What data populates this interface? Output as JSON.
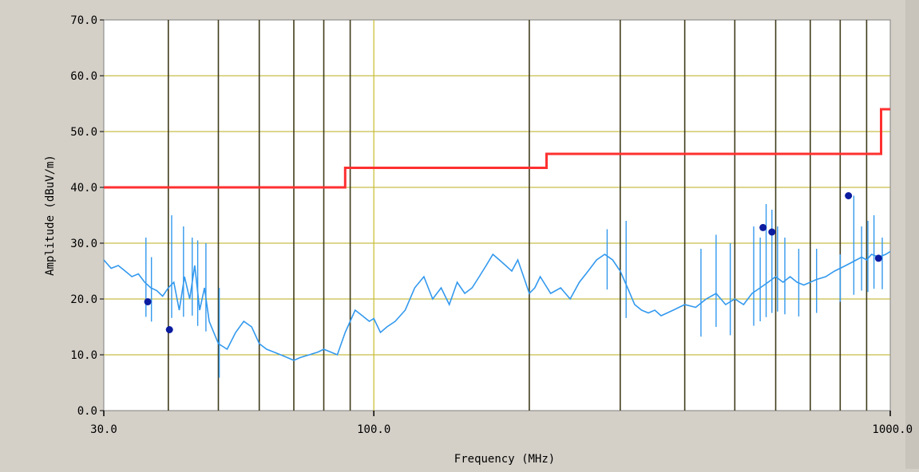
{
  "chart_data": {
    "type": "line",
    "xlabel": "Frequency (MHz)",
    "ylabel": "Amplitude (dBuV/m)",
    "x_scale": "log",
    "xlim": [
      30,
      1000
    ],
    "ylim": [
      0,
      70
    ],
    "x_tick_labels": [
      {
        "value": 30,
        "label": "30.0"
      },
      {
        "value": 100,
        "label": "100.0"
      },
      {
        "value": 1000,
        "label": "1000.0"
      }
    ],
    "y_tick_labels": [
      {
        "value": 0,
        "label": "0.0"
      },
      {
        "value": 10,
        "label": "10.0"
      },
      {
        "value": 20,
        "label": "20.0"
      },
      {
        "value": 30,
        "label": "30.0"
      },
      {
        "value": 40,
        "label": "40.0"
      },
      {
        "value": 50,
        "label": "50.0"
      },
      {
        "value": 60,
        "label": "60.0"
      },
      {
        "value": 70,
        "label": "70.0"
      }
    ],
    "grid": true,
    "grid_vertical_minor": [
      40,
      50,
      60,
      70,
      80,
      90,
      200,
      300,
      400,
      500,
      600,
      700,
      800,
      900
    ],
    "grid_vertical_major": [
      100,
      200
    ],
    "limit_line": {
      "color": "#ff3030",
      "x": [
        30,
        88,
        88,
        216,
        216,
        960,
        960,
        1000
      ],
      "y": [
        40,
        40,
        43.5,
        43.5,
        46,
        46,
        54,
        54
      ]
    },
    "measured_trace": {
      "color": "#3399ee",
      "x": [
        30,
        31,
        32,
        33,
        34,
        35,
        36,
        37,
        38,
        39,
        40,
        41,
        42,
        43,
        44,
        45,
        46,
        47,
        48,
        50,
        52,
        54,
        56,
        58,
        60,
        62,
        64,
        66,
        68,
        70,
        72,
        75,
        78,
        80,
        85,
        88,
        90,
        92,
        95,
        98,
        100,
        103,
        106,
        110,
        115,
        120,
        125,
        130,
        135,
        140,
        145,
        150,
        155,
        160,
        165,
        170,
        175,
        180,
        185,
        190,
        195,
        200,
        205,
        210,
        220,
        230,
        240,
        250,
        260,
        270,
        280,
        290,
        300,
        310,
        320,
        330,
        340,
        350,
        360,
        380,
        400,
        420,
        440,
        460,
        480,
        500,
        520,
        540,
        560,
        580,
        600,
        620,
        640,
        660,
        680,
        700,
        720,
        750,
        780,
        800,
        820,
        840,
        860,
        880,
        900,
        920,
        950,
        980,
        1000
      ],
      "y": [
        27,
        25.5,
        26,
        25,
        24,
        24.5,
        23,
        22,
        21.5,
        20.5,
        22,
        23,
        18,
        24,
        20,
        26,
        18,
        22,
        16,
        12,
        11,
        14,
        16,
        15,
        12,
        11,
        10.5,
        10,
        9.5,
        9,
        9.5,
        10,
        10.5,
        11,
        10,
        14,
        16,
        18,
        17,
        16,
        16.5,
        14,
        15,
        16,
        18,
        22,
        24,
        20,
        22,
        19,
        23,
        21,
        22,
        24,
        26,
        28,
        27,
        26,
        25,
        27,
        24,
        21,
        22,
        24,
        21,
        22,
        20,
        23,
        25,
        27,
        28,
        27,
        25,
        22,
        19,
        18,
        17.5,
        18,
        17,
        18,
        19,
        18.5,
        20,
        21,
        19,
        20,
        19,
        21,
        22,
        23,
        24,
        23,
        24,
        23,
        22.5,
        23,
        23.5,
        24,
        25,
        25.5,
        26,
        26.5,
        27,
        27.5,
        27,
        28,
        27.5,
        28,
        28.5
      ]
    },
    "spikes": [
      {
        "x": 36.2,
        "peak": 31
      },
      {
        "x": 37.1,
        "peak": 27.5
      },
      {
        "x": 40.6,
        "peak": 35
      },
      {
        "x": 42.8,
        "peak": 33
      },
      {
        "x": 44.5,
        "peak": 31
      },
      {
        "x": 45.6,
        "peak": 30.5
      },
      {
        "x": 47.3,
        "peak": 30
      },
      {
        "x": 50.2,
        "peak": 22
      },
      {
        "x": 283,
        "peak": 32.5
      },
      {
        "x": 308,
        "peak": 34
      },
      {
        "x": 430,
        "peak": 29
      },
      {
        "x": 460,
        "peak": 31.5
      },
      {
        "x": 490,
        "peak": 30
      },
      {
        "x": 544,
        "peak": 33
      },
      {
        "x": 560,
        "peak": 31
      },
      {
        "x": 575,
        "peak": 37
      },
      {
        "x": 590,
        "peak": 36
      },
      {
        "x": 605,
        "peak": 33
      },
      {
        "x": 625,
        "peak": 31
      },
      {
        "x": 665,
        "peak": 29
      },
      {
        "x": 720,
        "peak": 29
      },
      {
        "x": 800,
        "peak": 28
      },
      {
        "x": 850,
        "peak": 38.5
      },
      {
        "x": 880,
        "peak": 33
      },
      {
        "x": 905,
        "peak": 34
      },
      {
        "x": 930,
        "peak": 35
      },
      {
        "x": 965,
        "peak": 31
      }
    ],
    "markers": {
      "color": "#0c1ca0",
      "points": [
        {
          "x": 36.5,
          "y": 19.5
        },
        {
          "x": 40.2,
          "y": 14.5
        },
        {
          "x": 567,
          "y": 32.8
        },
        {
          "x": 590,
          "y": 32.0
        },
        {
          "x": 830,
          "y": 38.5
        },
        {
          "x": 949,
          "y": 27.3
        }
      ]
    }
  }
}
